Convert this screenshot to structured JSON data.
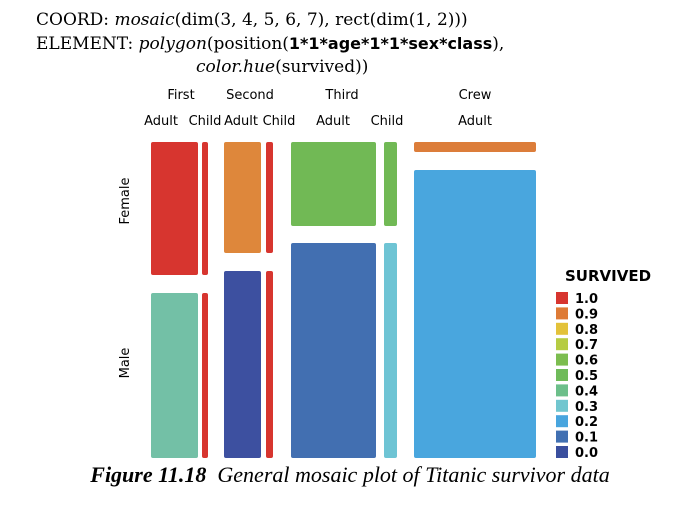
{
  "spec": {
    "line1_prefix": "COORD: ",
    "line1_func": "mosaic",
    "line1_rest": "(dim(3, 4, 5, 6, 7), rect(dim(1, 2)))",
    "line2_prefix": "ELEMENT: ",
    "line2_func": "polygon",
    "line2_args_open": "(position(",
    "line2_expr": "1*1*age*1*1*sex*class",
    "line2_close": "),",
    "line3_func": "color.hue",
    "line3_args": "(survived))"
  },
  "caption": {
    "label": "Figure 11.18",
    "text": "General mosaic plot of Titanic survivor data"
  },
  "chart_data": {
    "type": "mosaic",
    "classes": [
      {
        "name": "First",
        "ages": [
          "Adult",
          "Child"
        ]
      },
      {
        "name": "Second",
        "ages": [
          "Adult",
          "Child"
        ]
      },
      {
        "name": "Third",
        "ages": [
          "Adult",
          "Child"
        ]
      },
      {
        "name": "Crew",
        "ages": [
          "Adult"
        ]
      }
    ],
    "sexes": [
      "Female",
      "Male"
    ],
    "cells": [
      {
        "class": "First",
        "age": "Adult",
        "sex": "Female",
        "survived": 0.97
      },
      {
        "class": "First",
        "age": "Adult",
        "sex": "Male",
        "survived": 0.33
      },
      {
        "class": "First",
        "age": "Child",
        "sex": "Female",
        "survived": 1.0
      },
      {
        "class": "First",
        "age": "Child",
        "sex": "Male",
        "survived": 1.0
      },
      {
        "class": "Second",
        "age": "Adult",
        "sex": "Female",
        "survived": 0.86
      },
      {
        "class": "Second",
        "age": "Adult",
        "sex": "Male",
        "survived": 0.08
      },
      {
        "class": "Second",
        "age": "Child",
        "sex": "Female",
        "survived": 1.0
      },
      {
        "class": "Second",
        "age": "Child",
        "sex": "Male",
        "survived": 1.0
      },
      {
        "class": "Third",
        "age": "Adult",
        "sex": "Female",
        "survived": 0.46
      },
      {
        "class": "Third",
        "age": "Adult",
        "sex": "Male",
        "survived": 0.16
      },
      {
        "class": "Third",
        "age": "Child",
        "sex": "Female",
        "survived": 0.45
      },
      {
        "class": "Third",
        "age": "Child",
        "sex": "Male",
        "survived": 0.27
      },
      {
        "class": "Crew",
        "age": "Adult",
        "sex": "Female",
        "survived": 0.87
      },
      {
        "class": "Crew",
        "age": "Adult",
        "sex": "Male",
        "survived": 0.22
      }
    ],
    "legend": {
      "title": "SURVIVED",
      "placement": "right",
      "entries": [
        {
          "label": "1.0",
          "color": "#d7352f"
        },
        {
          "label": "0.9",
          "color": "#de7b36"
        },
        {
          "label": "0.8",
          "color": "#e3c23a"
        },
        {
          "label": "0.7",
          "color": "#b6cc43"
        },
        {
          "label": "0.6",
          "color": "#7cbd4f"
        },
        {
          "label": "0.5",
          "color": "#6fbb5a"
        },
        {
          "label": "0.4",
          "color": "#6cbf8a"
        },
        {
          "label": "0.3",
          "color": "#71c6cf"
        },
        {
          "label": "0.2",
          "color": "#48a5de"
        },
        {
          "label": "0.1",
          "color": "#4170b2"
        },
        {
          "label": "0.0",
          "color": "#3a4f9e"
        }
      ]
    },
    "colors": {
      "first_female_adult": "#d7352f",
      "first_female_child": "#d7352f",
      "first_male_adult": "#73c0a6",
      "first_male_child": "#d7352f",
      "second_female_adult": "#de873b",
      "second_female_child": "#d7352f",
      "second_male_adult": "#3d50a0",
      "second_male_child": "#d7352f",
      "third_female_adult": "#71b955",
      "third_female_child": "#71b955",
      "third_male_adult": "#426fb1",
      "third_male_child": "#6ec4d4",
      "crew_female_adult": "#dc7d3a",
      "crew_male_adult": "#49a6de"
    }
  }
}
